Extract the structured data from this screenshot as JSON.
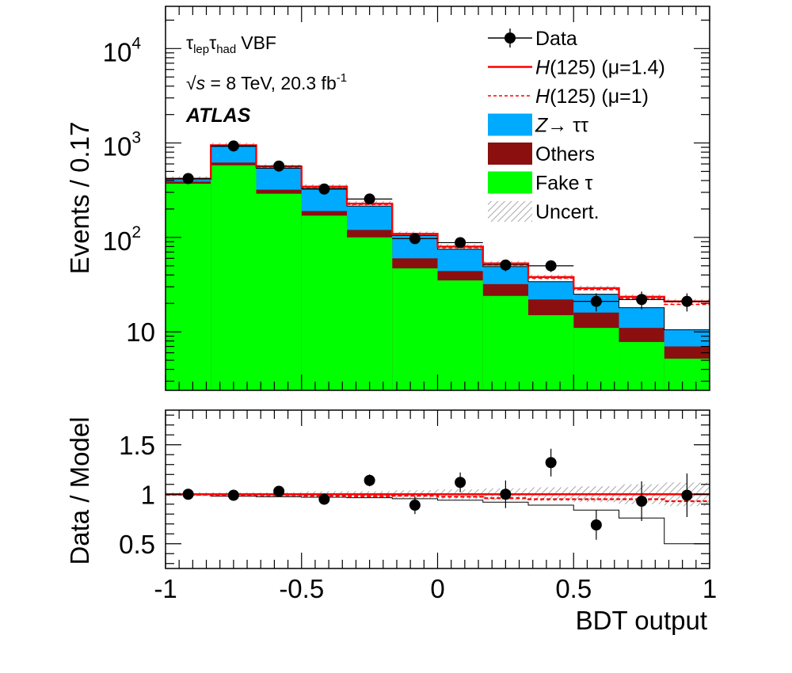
{
  "chart_data": [
    {
      "type": "bar",
      "scale": "log",
      "ylabel": "Events / 0.17",
      "xlim": [
        -1,
        1
      ],
      "ylim": [
        2.4,
        28000
      ],
      "y_ticks": [
        {
          "v": 10,
          "mant": "10",
          "exp": ""
        },
        {
          "v": 100,
          "mant": "10",
          "exp": "2"
        },
        {
          "v": 1000,
          "mant": "10",
          "exp": "3"
        },
        {
          "v": 10000,
          "mant": "10",
          "exp": "4"
        }
      ],
      "annotations": {
        "channel_tau1": "τ",
        "channel_sub1": "lep",
        "channel_tau2": "τ",
        "channel_sub2": "had",
        "channel_suffix": "VBF",
        "energy_root": "√",
        "energy_s": "s",
        "energy_rest": " = 8 TeV, 20.3 fb",
        "energy_sup": "-1",
        "experiment": "ATLAS"
      },
      "legend": [
        {
          "key": "data",
          "pre": "",
          "italic": "",
          "post": "Data"
        },
        {
          "key": "h14",
          "pre": "",
          "italic": "H",
          "post": "(125) (μ=1.4)"
        },
        {
          "key": "h1",
          "pre": "",
          "italic": "H",
          "post": "(125) (μ=1)"
        },
        {
          "key": "ztt",
          "pre": "",
          "italic": "Z",
          "post": "→ ττ"
        },
        {
          "key": "others",
          "pre": "",
          "italic": "",
          "post": "Others"
        },
        {
          "key": "fake",
          "pre": "",
          "italic": "",
          "post": "Fake τ"
        },
        {
          "key": "uncert",
          "pre": "",
          "italic": "",
          "post": "Uncert."
        }
      ],
      "bin_edges": [
        -1.0,
        -0.8333,
        -0.6667,
        -0.5,
        -0.3333,
        -0.1667,
        0.0,
        0.1667,
        0.3333,
        0.5,
        0.6667,
        0.8333,
        1.0
      ],
      "series": [
        {
          "name": "Fake τ",
          "values": [
            370,
            580,
            290,
            170,
            100,
            47,
            35,
            24,
            15,
            11,
            7.8,
            5.2
          ]
        },
        {
          "name": "Others",
          "values": [
            390,
            620,
            320,
            190,
            120,
            60,
            44,
            32,
            22,
            16,
            11,
            7.0
          ]
        },
        {
          "name": "Z→ ττ",
          "values": [
            410,
            920,
            540,
            330,
            215,
            105,
            75,
            49,
            34,
            25,
            18,
            10.5
          ]
        },
        {
          "name": "H(125) (μ=1.4)",
          "values": [
            418,
            945,
            562,
            345,
            228,
            109,
            80,
            53,
            38,
            29,
            23.5,
            21
          ]
        },
        {
          "name": "H(125) (μ=1)",
          "values": [
            415,
            935,
            555,
            340,
            224,
            108,
            78,
            51,
            37,
            28,
            22.5,
            19.5
          ]
        }
      ],
      "data_points": {
        "name": "Data",
        "x": [
          -0.9167,
          -0.75,
          -0.5833,
          -0.4167,
          -0.25,
          -0.0833,
          0.0833,
          0.25,
          0.4167,
          0.5833,
          0.75,
          0.9167
        ],
        "y": [
          420,
          930,
          570,
          325,
          255,
          97,
          88,
          51,
          50,
          21,
          22,
          21
        ]
      }
    },
    {
      "type": "scatter",
      "xlabel": "BDT output",
      "ylabel": "Data / Model",
      "xlim": [
        -1,
        1
      ],
      "ylim": [
        0.25,
        1.85
      ],
      "y_ticks": [
        {
          "v": 0.5,
          "label": "0.5"
        },
        {
          "v": 1,
          "label": "1"
        },
        {
          "v": 1.5,
          "label": "1.5"
        }
      ],
      "x_ticks": [
        {
          "v": -1,
          "label": "-1"
        },
        {
          "v": -0.5,
          "label": "-0.5"
        },
        {
          "v": 0,
          "label": "0"
        },
        {
          "v": 0.5,
          "label": "0.5"
        },
        {
          "v": 1,
          "label": "1"
        }
      ],
      "data_points": {
        "x": [
          -0.9167,
          -0.75,
          -0.5833,
          -0.4167,
          -0.25,
          -0.0833,
          0.0833,
          0.25,
          0.4167,
          0.5833,
          0.75,
          0.9167
        ],
        "y": [
          1.0,
          0.99,
          1.03,
          0.95,
          1.14,
          0.89,
          1.12,
          1.0,
          1.32,
          0.69,
          0.93,
          0.99
        ],
        "err": [
          0.04,
          0.03,
          0.04,
          0.05,
          0.06,
          0.09,
          0.1,
          0.14,
          0.14,
          0.15,
          0.2,
          0.22
        ]
      },
      "bkg_only_ratio": [
        1.0,
        0.98,
        0.975,
        0.97,
        0.965,
        0.955,
        0.94,
        0.92,
        0.89,
        0.84,
        0.76,
        0.5
      ],
      "h1_ratio": [
        0.995,
        0.99,
        0.99,
        0.985,
        0.98,
        0.985,
        0.975,
        0.96,
        0.95,
        0.95,
        0.95,
        0.93
      ],
      "uncert_band": [
        0.02,
        0.02,
        0.02,
        0.03,
        0.03,
        0.04,
        0.05,
        0.06,
        0.07,
        0.08,
        0.1,
        0.12
      ]
    }
  ]
}
